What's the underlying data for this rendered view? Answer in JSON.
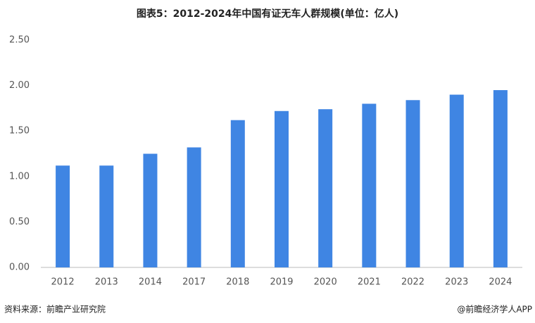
{
  "chart_data": {
    "type": "bar",
    "title": "图表5：2012-2024年中国有证无车人群规模(单位：亿人)",
    "categories": [
      "2012",
      "2013",
      "2014",
      "2017",
      "2018",
      "2019",
      "2020",
      "2021",
      "2022",
      "2023",
      "2024"
    ],
    "values": [
      1.12,
      1.12,
      1.25,
      1.32,
      1.62,
      1.72,
      1.74,
      1.8,
      1.84,
      1.9,
      1.95
    ],
    "color": "#3f85e3",
    "ylim": [
      0,
      2.5
    ],
    "yticks": [
      {
        "value": 0,
        "label": "0.00"
      },
      {
        "value": 0.5,
        "label": "0.50"
      },
      {
        "value": 1,
        "label": "1.00"
      },
      {
        "value": 1.5,
        "label": "1.50"
      },
      {
        "value": 2,
        "label": "2.00"
      },
      {
        "value": 2.5,
        "label": "2.50"
      }
    ],
    "grid": false,
    "source": "资料来源：前瞻产业研究院",
    "credit": "@前瞻经济学人APP"
  }
}
